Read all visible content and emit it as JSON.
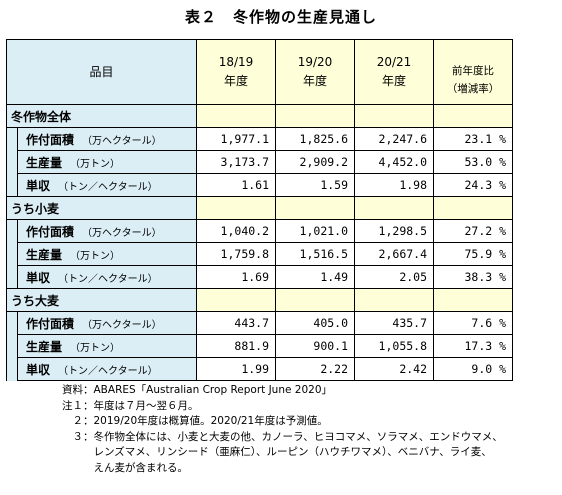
{
  "title": "表２　冬作物の生産見通し",
  "header": {
    "item": "品目",
    "col1": [
      "18/19",
      "年度"
    ],
    "col2": [
      "19/20",
      "年度"
    ],
    "col3": [
      "20/21",
      "年度"
    ],
    "col4": [
      "前年度比",
      "（増減率）"
    ]
  },
  "groups": [
    {
      "name": "冬作物全体",
      "rows": [
        {
          "label": "作付面積",
          "unit": "（万ヘクタール）",
          "v1": "1,977.1",
          "v2": "1,825.6",
          "v3": "2,247.6",
          "v4": "23.1 %"
        },
        {
          "label": "生産量",
          "unit": "（万トン）",
          "v1": "3,173.7",
          "v2": "2,909.2",
          "v3": "4,452.0",
          "v4": "53.0 %"
        },
        {
          "label": "単収",
          "unit": "（トン／ヘクタール）",
          "v1": "1.61",
          "v2": "1.59",
          "v3": "1.98",
          "v4": "24.3 %"
        }
      ]
    },
    {
      "name": "うち小麦",
      "rows": [
        {
          "label": "作付面積",
          "unit": "（万ヘクタール）",
          "v1": "1,040.2",
          "v2": "1,021.0",
          "v3": "1,298.5",
          "v4": "27.2 %"
        },
        {
          "label": "生産量",
          "unit": "（万トン）",
          "v1": "1,759.8",
          "v2": "1,516.5",
          "v3": "2,667.4",
          "v4": "75.9 %"
        },
        {
          "label": "単収",
          "unit": "（トン／ヘクタール）",
          "v1": "1.69",
          "v2": "1.49",
          "v3": "2.05",
          "v4": "38.3 %"
        }
      ]
    },
    {
      "name": "うち大麦",
      "rows": [
        {
          "label": "作付面積",
          "unit": "（万ヘクタール）",
          "v1": "443.7",
          "v2": "405.0",
          "v3": "435.7",
          "v4": "7.6 %"
        },
        {
          "label": "生産量",
          "unit": "（万トン）",
          "v1": "881.9",
          "v2": "900.1",
          "v3": "1,055.8",
          "v4": "17.3 %"
        },
        {
          "label": "単収",
          "unit": "（トン／ヘクタール）",
          "v1": "1.99",
          "v2": "2.22",
          "v3": "2.42",
          "v4": "9.0 %"
        }
      ]
    }
  ],
  "notes": [
    "資料：ABARES「Australian Crop Report June 2020」",
    "注１：年度は７月～翌６月。",
    "　２：2019/20年度は概算値。2020/21年度は予測値。",
    "　３：冬作物全体には、小麦と大麦の他、カノーラ、ヒヨコマメ、ソラマメ、エンドウマメ、",
    "　　　レンズマメ、リンシード（亜麻仁）、ルーピン（ハウチワマメ）、ベニバナ、ライ麦、",
    "　　　えん麦が含まれる。"
  ]
}
